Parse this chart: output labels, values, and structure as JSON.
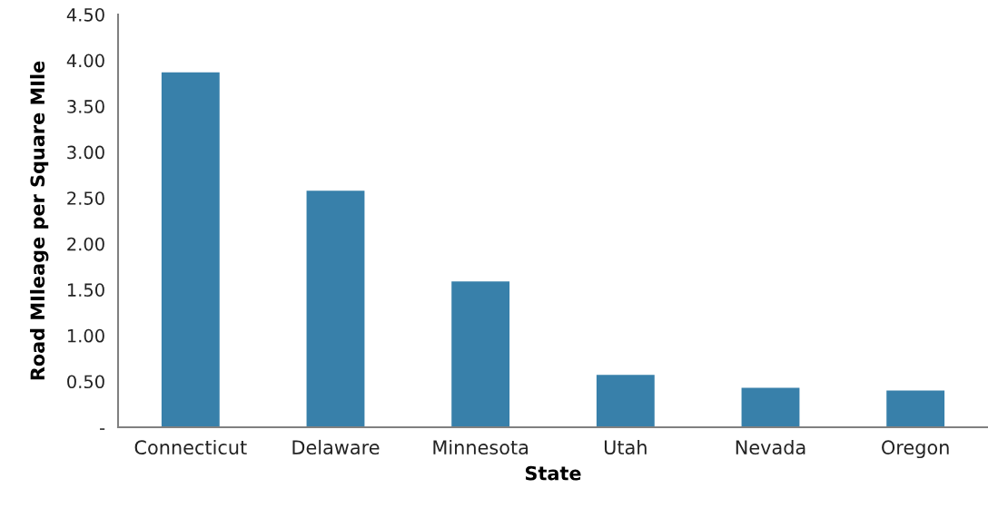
{
  "chart_data": {
    "type": "bar",
    "xlabel": "State",
    "ylabel": "Road MIleage per Square MIle",
    "categories": [
      "Connecticut",
      "Delaware",
      "Minnesota",
      "Utah",
      "Nevada",
      "Oregon"
    ],
    "values": [
      3.87,
      2.58,
      1.59,
      0.57,
      0.43,
      0.4
    ],
    "color": "#3880aa",
    "ylim": [
      0,
      4.5
    ],
    "yticks": [
      {
        "value": 0,
        "label": "-"
      },
      {
        "value": 0.5,
        "label": "0.50"
      },
      {
        "value": 1,
        "label": "1.00"
      },
      {
        "value": 1.5,
        "label": "1.50"
      },
      {
        "value": 2,
        "label": "2.00"
      },
      {
        "value": 2.5,
        "label": "2.50"
      },
      {
        "value": 3,
        "label": "3.00"
      },
      {
        "value": 3.5,
        "label": "3.50"
      },
      {
        "value": 4,
        "label": "4.00"
      },
      {
        "value": 4.5,
        "label": "4.50"
      }
    ],
    "grid": false,
    "legend": false
  }
}
